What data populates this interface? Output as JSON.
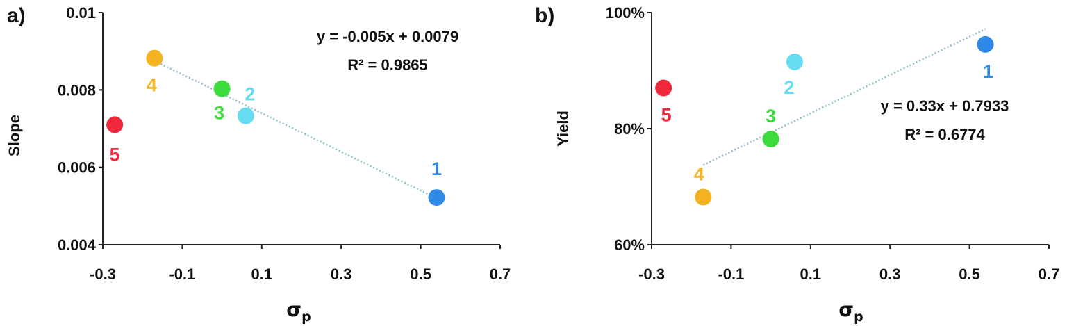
{
  "chart_data": [
    {
      "type": "scatter",
      "panel_label": "a)",
      "xlabel": "σ",
      "xlabel_sub": "p",
      "ylabel": "Slope",
      "xlim": [
        -0.3,
        0.7
      ],
      "ylim": [
        0.004,
        0.01
      ],
      "x_ticks": [
        -0.3,
        -0.1,
        0.1,
        0.3,
        0.5,
        0.7
      ],
      "x_tick_labels": [
        "-0.3",
        "-0.1",
        "0.1",
        "0.3",
        "0.5",
        "0.7"
      ],
      "y_ticks": [
        0.004,
        0.006,
        0.008,
        0.01
      ],
      "y_tick_labels": [
        "0.004",
        "0.006",
        "0.008",
        "0.01"
      ],
      "grid": false,
      "points": [
        {
          "label": "1",
          "x": 0.54,
          "y": 0.00522,
          "color": "#2e8ae6"
        },
        {
          "label": "2",
          "x": 0.06,
          "y": 0.00733,
          "color": "#66dcf0"
        },
        {
          "label": "3",
          "x": 0.0,
          "y": 0.00803,
          "color": "#3ddc3d"
        },
        {
          "label": "4",
          "x": -0.17,
          "y": 0.00882,
          "color": "#f5b324"
        },
        {
          "label": "5",
          "x": -0.27,
          "y": 0.0071,
          "color": "#f0283c"
        }
      ],
      "trendline": {
        "slope": -0.005,
        "intercept": 0.0079,
        "x_range": [
          -0.17,
          0.54
        ]
      },
      "equation": "y = -0.005x + 0.0079",
      "r_squared": "R² = 0.9865"
    },
    {
      "type": "scatter",
      "panel_label": "b)",
      "xlabel": "σ",
      "xlabel_sub": "p",
      "ylabel": "Yield",
      "xlim": [
        -0.3,
        0.7
      ],
      "ylim": [
        0.6,
        1.0
      ],
      "x_ticks": [
        -0.3,
        -0.1,
        0.1,
        0.3,
        0.5,
        0.7
      ],
      "x_tick_labels": [
        "-0.3",
        "-0.1",
        "0.1",
        "0.3",
        "0.5",
        "0.7"
      ],
      "y_ticks": [
        0.6,
        0.8,
        1.0
      ],
      "y_tick_labels": [
        "60%",
        "80%",
        "100%"
      ],
      "grid": false,
      "points": [
        {
          "label": "1",
          "x": 0.54,
          "y": 0.945,
          "color": "#2e8ae6"
        },
        {
          "label": "2",
          "x": 0.06,
          "y": 0.915,
          "color": "#66dcf0"
        },
        {
          "label": "3",
          "x": 0.0,
          "y": 0.782,
          "color": "#3ddc3d"
        },
        {
          "label": "4",
          "x": -0.17,
          "y": 0.682,
          "color": "#f5b324"
        },
        {
          "label": "5",
          "x": -0.27,
          "y": 0.87,
          "color": "#f0283c"
        }
      ],
      "trendline": {
        "slope": 0.33,
        "intercept": 0.7933,
        "x_range": [
          -0.17,
          0.54
        ]
      },
      "equation": "y = 0.33x + 0.7933",
      "r_squared": "R² = 0.6774"
    }
  ]
}
